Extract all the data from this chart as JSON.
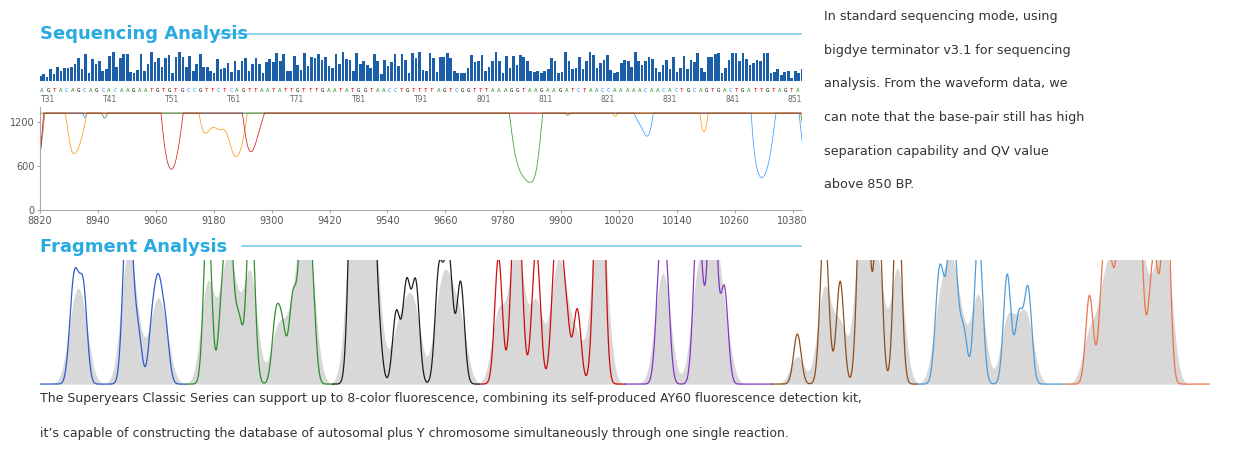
{
  "title_seq": "Sequencing Analysis",
  "title_frag": "Fragment Analysis",
  "title_color": "#29abe2",
  "bg_color": "#ffffff",
  "seq_bar_color": "#1a5fa8",
  "seq_x_ticks": [
    "T31",
    "T41",
    "T51",
    "T61",
    "T71",
    "T81",
    "T91",
    "801",
    "811",
    "821",
    "831",
    "841",
    "851"
  ],
  "seq_dna": "AGTACAGCAGCACAAGAATGTGTGCCGTTCTCAGTTAATATTGTTTGAATATGGTAACCTGTTTTAGTCGGTTTAAAGGTAAGAAGATCTAACCAAAAACAACACTGCAGTGACTGATTGTAGTA",
  "seq_wave_colors": [
    "#1e90ff",
    "#ff8c00",
    "#228b22",
    "#cc0000"
  ],
  "seq_ylim": [
    0,
    1400
  ],
  "seq_yticks": [
    0,
    600,
    1200
  ],
  "seq_xrange": [
    8820,
    10400
  ],
  "seq_xticks": [
    8820,
    8940,
    9060,
    9180,
    9300,
    9420,
    9540,
    9660,
    9780,
    9900,
    10020,
    10140,
    10260,
    10380
  ],
  "right_text_lines": [
    "In standard sequencing mode, using",
    "bigdye terminator v3.1 for sequencing",
    "analysis. From the waveform data, we",
    "can note that the base-pair still has high",
    "separation capability and QV value",
    "above 850 BP."
  ],
  "frag_colors": [
    "#2255cc",
    "#228b22",
    "#111111",
    "#cc0000",
    "#7b2fbe",
    "#8b4513",
    "#4499dd",
    "#e87040"
  ],
  "bottom_text_lines": [
    "The Superyears Classic Series can support up to 8-color fluorescence, combining its self-produced AY60 fluorescence detection kit,",
    "it’s capable of constructing the database of autosomal plus Y chromosome simultaneously through one single reaction."
  ],
  "base_colors": {
    "A": "#228b22",
    "T": "#cc0000",
    "G": "#111111",
    "C": "#1e90ff"
  }
}
